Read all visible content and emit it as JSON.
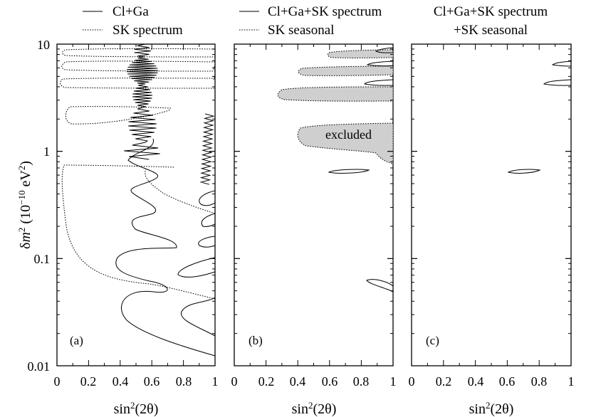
{
  "chart_data": [
    {
      "type": "contour",
      "panel_label": "(a)",
      "legend": [
        {
          "style": "solid",
          "label": "Cl+Ga"
        },
        {
          "style": "dotted",
          "label": "SK spectrum"
        }
      ],
      "xlabel": "sin",
      "xlabel_sup": "2",
      "xlabel_tail": "(2θ)",
      "xlim": [
        0,
        1
      ],
      "x_ticks": [
        "0",
        "0.2",
        "0.4",
        "0.6",
        "0.8",
        "1"
      ],
      "ylabel": {
        "delta": "δ",
        "m": "m",
        "sup2": "2",
        "mid": " (10",
        "exp": "−10",
        "unit": " eV",
        "sup2b": "2",
        "close": ")"
      },
      "yscale": "log",
      "ylim": [
        0.01,
        10
      ],
      "y_ticks": [
        "10",
        "1",
        "0.1",
        "0.01"
      ],
      "series": [
        {
          "name": "Cl+Ga",
          "style": "solid",
          "points": [
            [
              1.0,
              0.012
            ],
            [
              0.6,
              0.018
            ],
            [
              0.44,
              0.03
            ],
            [
              0.5,
              0.043
            ],
            [
              0.66,
              0.052
            ],
            [
              0.5,
              0.062
            ],
            [
              0.38,
              0.078
            ],
            [
              0.52,
              0.105
            ],
            [
              0.7,
              0.14
            ],
            [
              0.5,
              0.16
            ],
            [
              0.42,
              0.2
            ],
            [
              0.55,
              0.23
            ],
            [
              0.62,
              0.28
            ],
            [
              0.42,
              0.32
            ],
            [
              0.5,
              0.38
            ],
            [
              0.62,
              0.42
            ],
            [
              0.45,
              0.47
            ],
            [
              0.5,
              0.55
            ],
            [
              0.6,
              0.62
            ],
            [
              0.45,
              0.7
            ],
            [
              0.56,
              0.9
            ]
          ]
        },
        {
          "name": "Cl+Ga high-sin²2θ lobes",
          "style": "solid",
          "points": [
            [
              1.0,
              0.018
            ],
            [
              0.78,
              0.03
            ],
            [
              1.0,
              0.045
            ],
            [
              1.0,
              0.065
            ],
            [
              0.84,
              0.085
            ],
            [
              1.0,
              0.1
            ]
          ]
        },
        {
          "name": "SK spectrum",
          "style": "dotted",
          "points": [
            [
              1.0,
              0.043
            ],
            [
              0.68,
              0.052
            ],
            [
              0.35,
              0.078
            ],
            [
              0.12,
              0.2
            ],
            [
              0.05,
              0.45
            ],
            [
              0.04,
              0.72
            ],
            [
              0.6,
              0.72
            ]
          ]
        },
        {
          "name": "SK spectrum lower branch",
          "style": "dotted",
          "points": [
            [
              1.0,
              0.25
            ],
            [
              0.75,
              0.35
            ],
            [
              0.53,
              0.5
            ],
            [
              0.52,
              0.7
            ]
          ]
        }
      ]
    },
    {
      "type": "contour",
      "panel_label": "(b)",
      "legend": [
        {
          "style": "solid",
          "label": "Cl+Ga+SK spectrum"
        },
        {
          "style": "dotted",
          "label": "SK seasonal"
        }
      ],
      "annotation": "excluded",
      "xlabel": "sin",
      "xlabel_sup": "2",
      "xlabel_tail": "(2θ)",
      "xlim": [
        0,
        1
      ],
      "x_ticks": [
        "0",
        "0.2",
        "0.4",
        "0.6",
        "0.8",
        "1"
      ],
      "yscale": "log",
      "ylim": [
        0.01,
        10
      ],
      "series": [
        {
          "name": "Cl+Ga+SK spectrum",
          "style": "solid",
          "islands": [
            [
              0.6,
              0.65,
              0.84,
              0.67
            ],
            [
              0.84,
              0.06,
              1.0,
              0.055
            ],
            [
              0.84,
              4.6,
              1.0,
              6.5
            ]
          ]
        },
        {
          "name": "SK seasonal (excluded)",
          "style": "dotted-shaded",
          "regions": [
            [
              0.4,
              0.8,
              1.0,
              1.8
            ],
            [
              0.3,
              3.1,
              1.0,
              3.9
            ],
            [
              0.4,
              5.3,
              1.0,
              6.0
            ],
            [
              0.57,
              7.1,
              1.0,
              8.3
            ]
          ]
        }
      ]
    },
    {
      "type": "contour",
      "panel_label": "(c)",
      "legend": [
        {
          "style": "none",
          "label": "Cl+Ga+SK spectrum"
        },
        {
          "style": "none",
          "label": "+SK seasonal"
        }
      ],
      "xlabel": "sin",
      "xlabel_sup": "2",
      "xlabel_tail": "(2θ)",
      "xlim": [
        0,
        1
      ],
      "x_ticks": [
        "0",
        "0.2",
        "0.4",
        "0.6",
        "0.8",
        "1"
      ],
      "yscale": "log",
      "ylim": [
        0.01,
        10
      ],
      "series": [
        {
          "name": "Cl+Ga+SK spectrum+SK seasonal",
          "style": "solid",
          "islands": [
            [
              0.62,
              0.63,
              0.8,
              0.67
            ],
            [
              0.82,
              4.4,
              1.0,
              6.6
            ]
          ]
        }
      ]
    }
  ]
}
